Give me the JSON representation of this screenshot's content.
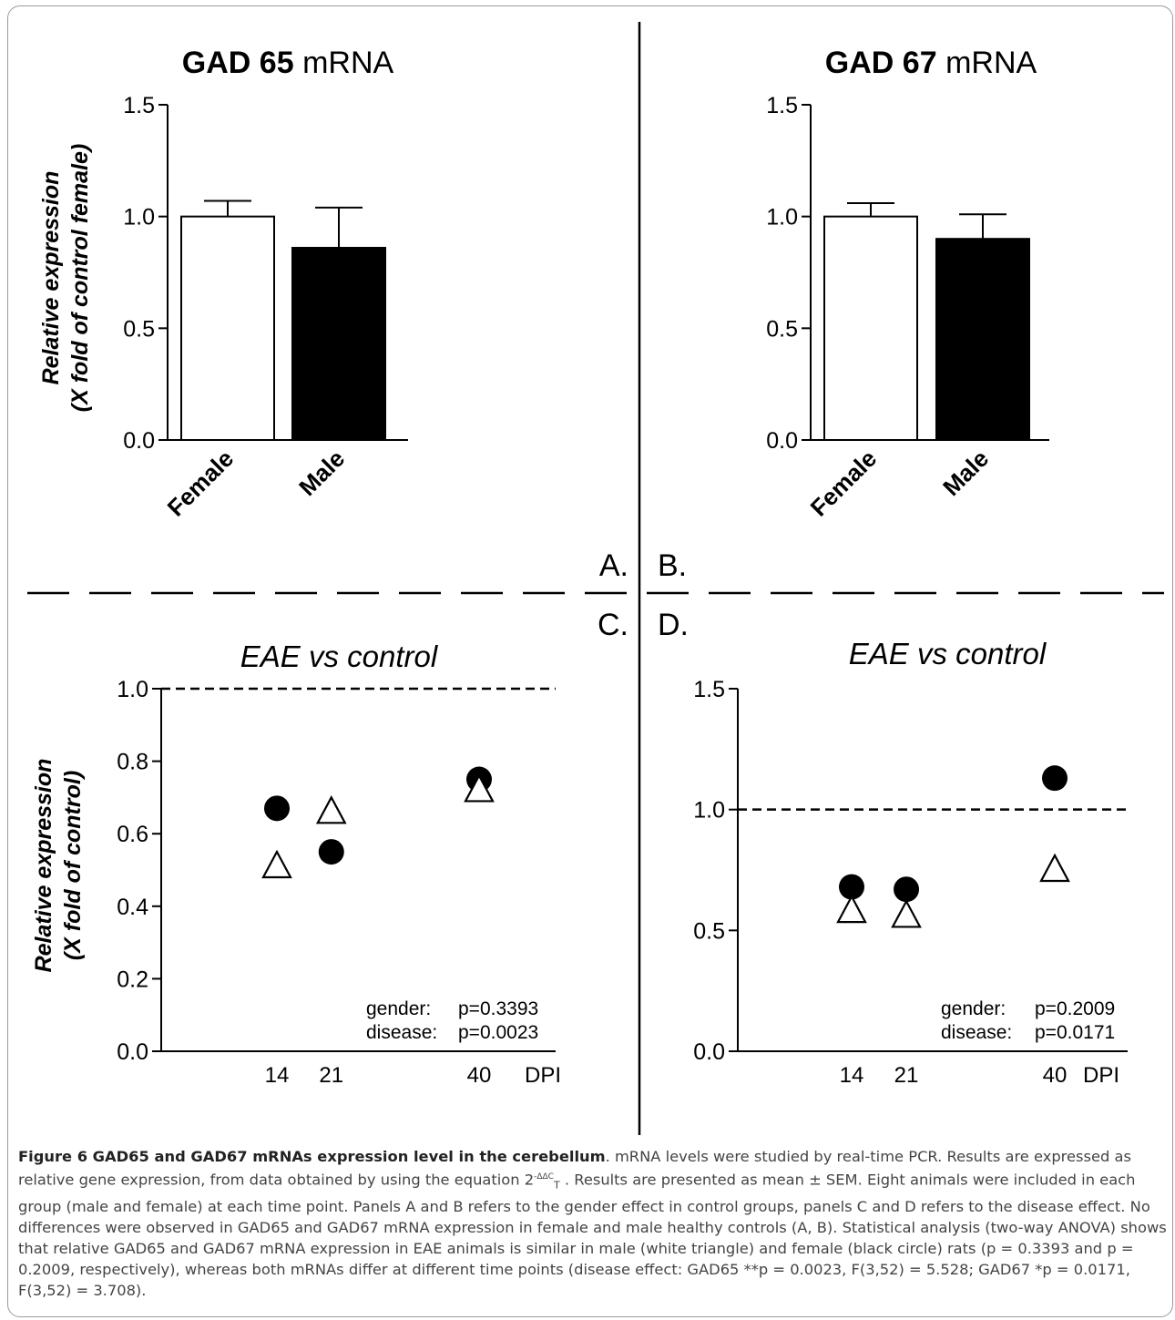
{
  "chart_data": [
    {
      "panel": "A",
      "type": "bar",
      "title_bold": "GAD 65",
      "title_rest": " mRNA",
      "ylabel_line1": "Relative expression",
      "ylabel_line2": "(X fold of control female)",
      "categories": [
        "Female",
        "Male"
      ],
      "values": [
        1.0,
        0.86
      ],
      "errors": [
        0.07,
        0.18
      ],
      "fills": [
        "#ffffff",
        "#000000"
      ],
      "ylim": [
        0,
        1.5
      ],
      "yticks": [
        "0.0",
        "0.5",
        "1.0",
        "1.5"
      ]
    },
    {
      "panel": "B",
      "type": "bar",
      "title_bold": "GAD 67",
      "title_rest": " mRNA",
      "categories": [
        "Female",
        "Male"
      ],
      "values": [
        1.0,
        0.9
      ],
      "errors": [
        0.06,
        0.11
      ],
      "fills": [
        "#ffffff",
        "#000000"
      ],
      "ylim": [
        0,
        1.5
      ],
      "yticks": [
        "0.0",
        "0.5",
        "1.0",
        "1.5"
      ]
    },
    {
      "panel": "C",
      "type": "scatter",
      "title": "EAE vs control",
      "ylabel_line1": "Relative expression",
      "ylabel_line2": "(X fold of control)",
      "xticks": [
        "14",
        "21",
        "40"
      ],
      "xunit": "DPI",
      "ylim": [
        0,
        1.0
      ],
      "yticks": [
        "0.0",
        "0.2",
        "0.4",
        "0.6",
        "0.8",
        "1.0"
      ],
      "reference_line": 1.0,
      "series": [
        {
          "marker": "circle-filled",
          "x": [
            14,
            21,
            40
          ],
          "y": [
            0.67,
            0.55,
            0.75
          ]
        },
        {
          "marker": "triangle-open",
          "x": [
            14,
            21,
            40
          ],
          "y": [
            0.51,
            0.66,
            0.72
          ]
        }
      ],
      "stats": [
        {
          "label": "gender:",
          "value": "p=0.3393"
        },
        {
          "label": "disease:",
          "value": "p=0.0023"
        }
      ]
    },
    {
      "panel": "D",
      "type": "scatter",
      "title": "EAE vs control",
      "xticks": [
        "14",
        "21",
        "40"
      ],
      "xunit": "DPI",
      "ylim": [
        0,
        1.5
      ],
      "yticks": [
        "0.0",
        "0.5",
        "1.0",
        "1.5"
      ],
      "reference_line": 1.0,
      "series": [
        {
          "marker": "circle-filled",
          "x": [
            14,
            21,
            40
          ],
          "y": [
            0.68,
            0.67,
            1.13
          ]
        },
        {
          "marker": "triangle-open",
          "x": [
            14,
            21,
            40
          ],
          "y": [
            0.58,
            0.56,
            0.75
          ]
        }
      ],
      "stats": [
        {
          "label": "gender:",
          "value": "p=0.2009"
        },
        {
          "label": "disease:",
          "value": "p=0.0171"
        }
      ]
    }
  ],
  "panel_labels": {
    "a": "A.",
    "b": "B.",
    "c": "C.",
    "d": "D."
  },
  "caption": {
    "title": "Figure 6 GAD65 and GAD67 mRNAs expression level in the cerebellum",
    "text1": ". mRNA levels were studied by real-time PCR. Results are expressed as relative gene expression, from data obtained by using the equation 2",
    "sup": "-ΔΔC",
    "sub": "T",
    "text2": " . Results are presented as mean ± SEM. Eight animals were included in each group (male and female) at each time point. Panels A and B refers to the gender effect in control groups, panels C and D refers to the disease effect. No differences were observed in GAD65 and GAD67 mRNA expression in female and male healthy controls (A, B). Statistical analysis (two-way ANOVA) shows that relative GAD65 and GAD67 mRNA expression in EAE animals is similar in male (white triangle) and female (black circle) rats (p = 0.3393 and p = 0.2009, respectively), whereas both mRNAs differ at different time points (disease effect: GAD65 **p = 0.0023, F(3,52) = 5.528; GAD67 *p = 0.0171, F(3,52) = 3.708)."
  }
}
